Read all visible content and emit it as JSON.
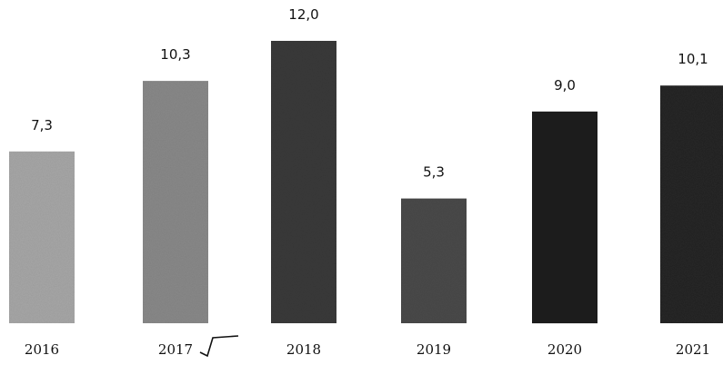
{
  "chart_data": {
    "type": "bar",
    "title": "",
    "xlabel": "",
    "ylabel": "",
    "categories": [
      "2016",
      "2017",
      "2018",
      "2019",
      "2020",
      "2021"
    ],
    "values": [
      7.3,
      10.3,
      12.0,
      5.3,
      9.0,
      10.1
    ],
    "value_labels": [
      "7,3",
      "10,3",
      "12,0",
      "5,3",
      "9,0",
      "10,1"
    ],
    "ylim": [
      0,
      12.0
    ],
    "grid": false,
    "legend": "none",
    "bar_colors": [
      "#a8a8a8",
      "#8a8a8a",
      "#3a3a3a",
      "#4a4a4a",
      "#1e1e1e",
      "#262626"
    ]
  }
}
